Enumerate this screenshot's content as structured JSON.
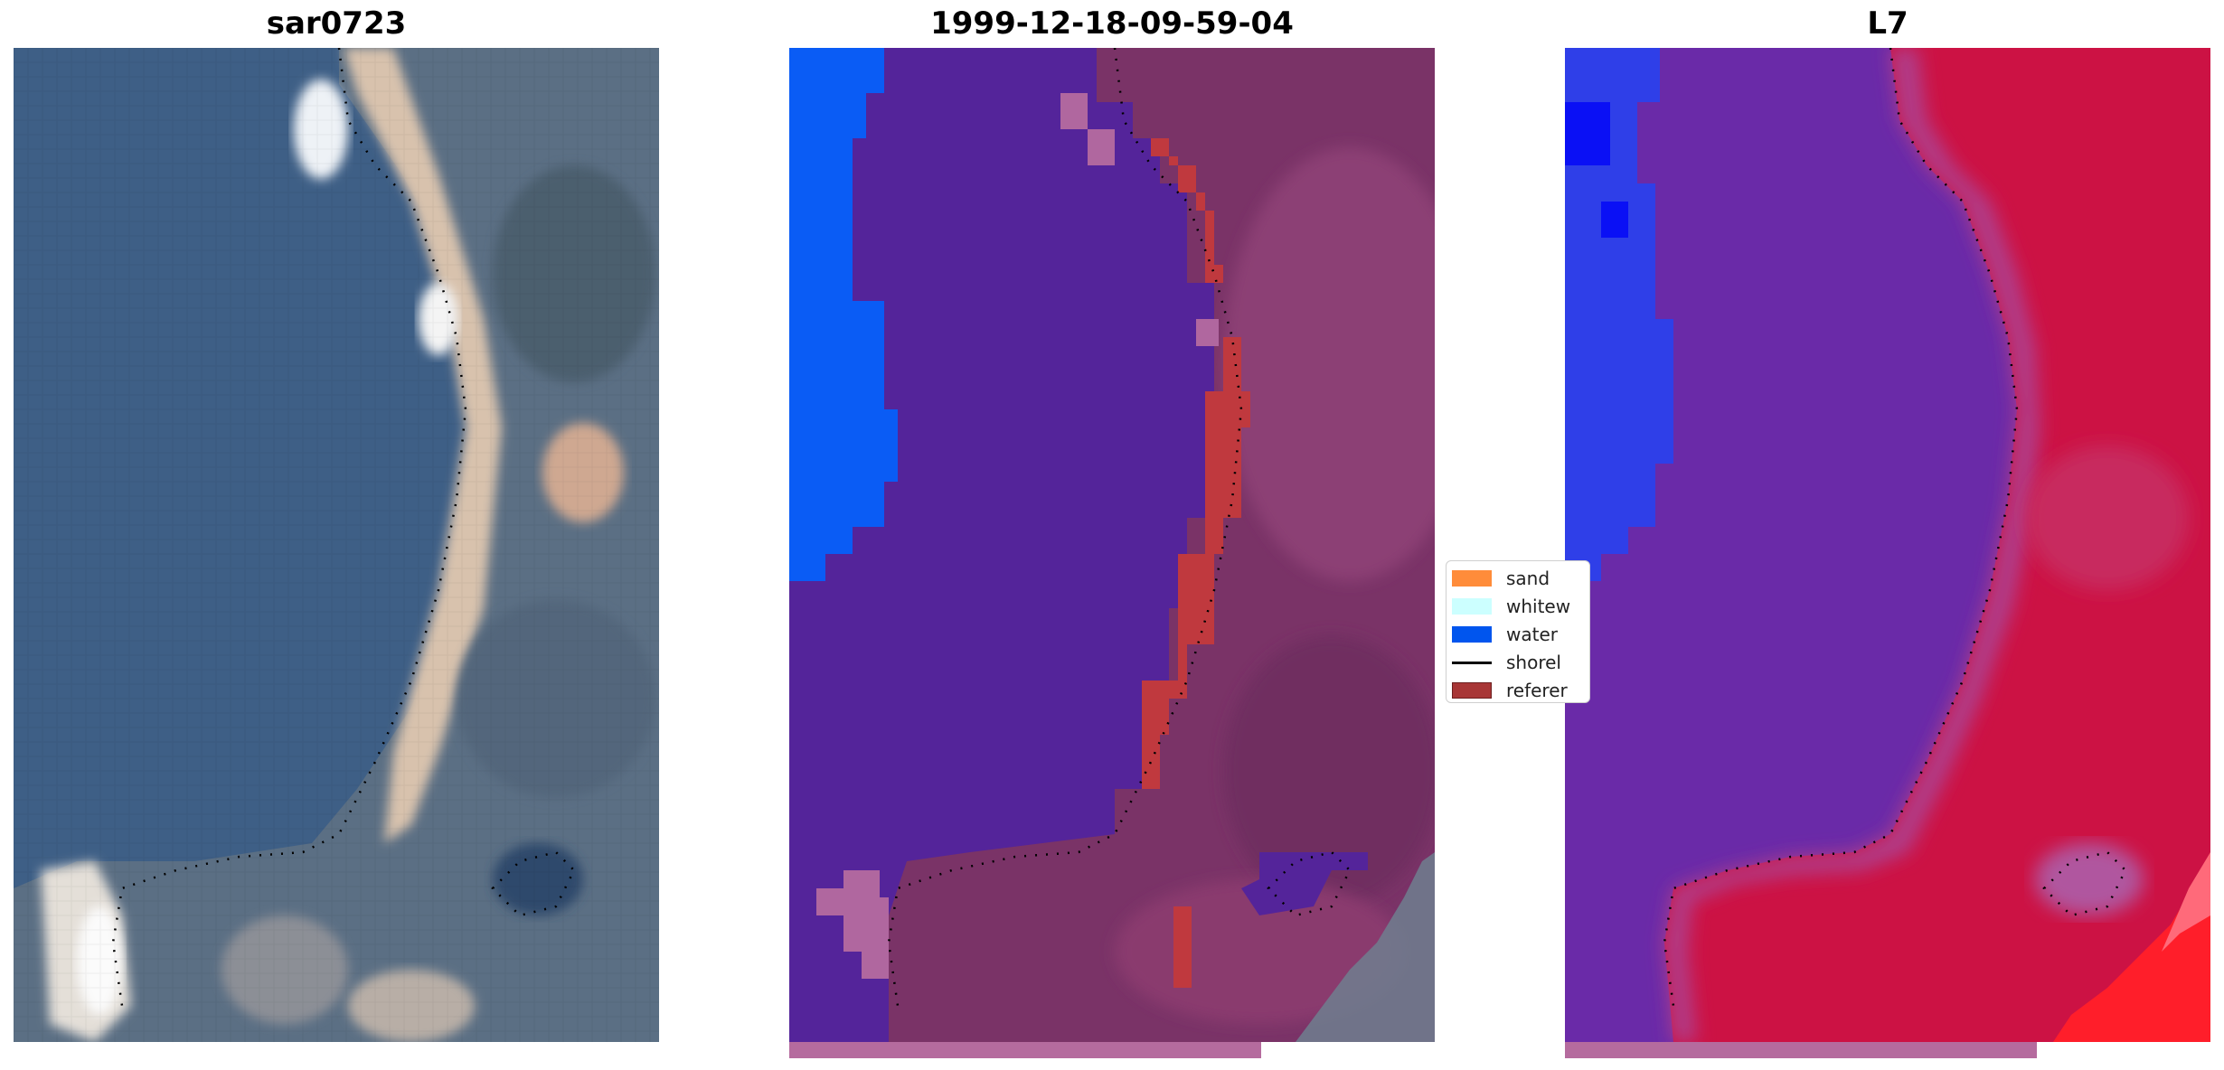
{
  "figure": {
    "panels": [
      {
        "title": "sar0723"
      },
      {
        "title": "1999-12-18-09-59-04"
      },
      {
        "title": "L7"
      }
    ]
  },
  "legend": {
    "items": [
      {
        "label": "sand",
        "color": "#ff8c3a",
        "kind": "patch"
      },
      {
        "label": "whitew",
        "color": "#ccffff",
        "kind": "patch"
      },
      {
        "label": "water",
        "color": "#0055ee",
        "kind": "patch"
      },
      {
        "label": "shorel",
        "color": "#000000",
        "kind": "line"
      },
      {
        "label": "referer",
        "color": "#a83636",
        "kind": "patch"
      }
    ]
  },
  "colors": {
    "sea_rgb": "#3e5f86",
    "beach_sand": "#d8c2ad",
    "class_water": "#0a5cf5",
    "class_purple": "#54249a",
    "class_reference": "#c0393e",
    "index_red": "#cc1244",
    "index_purple": "#6a2aa8"
  }
}
